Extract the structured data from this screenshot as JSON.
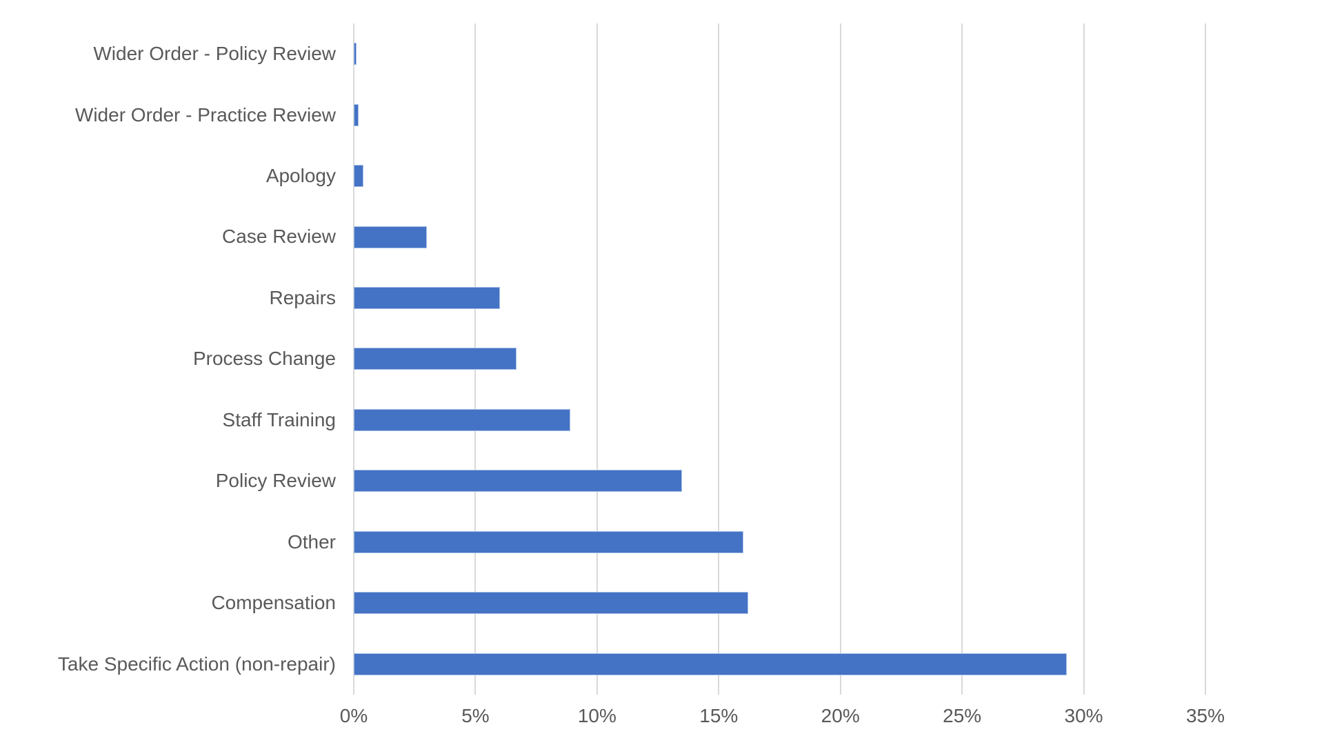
{
  "chart_data": {
    "type": "bar",
    "orientation": "horizontal",
    "title": "",
    "xlabel": "",
    "ylabel": "",
    "categories": [
      "Wider Order - Policy Review",
      "Wider Order - Practice Review",
      "Apology",
      "Case Review",
      "Repairs",
      "Process Change",
      "Staff Training",
      "Policy Review",
      "Other",
      "Compensation",
      "Take Specific Action (non-repair)"
    ],
    "values": [
      0.1,
      0.2,
      0.4,
      3.0,
      6.0,
      6.7,
      8.9,
      13.5,
      16.0,
      16.2,
      29.3
    ],
    "value_unit": "%",
    "x_ticks": [
      "0%",
      "5%",
      "10%",
      "15%",
      "20%",
      "25%",
      "30%",
      "35%"
    ],
    "x_tick_values": [
      0,
      5,
      10,
      15,
      20,
      25,
      30,
      35
    ],
    "xlim": [
      0,
      35
    ],
    "grid": true,
    "legend": "none",
    "colors": {
      "bar_fill": "#4472C4",
      "bar_border": "#A6BFE6",
      "gridline": "#D9D9D9",
      "axis_text": "#595959",
      "background": "#FFFFFF"
    }
  }
}
